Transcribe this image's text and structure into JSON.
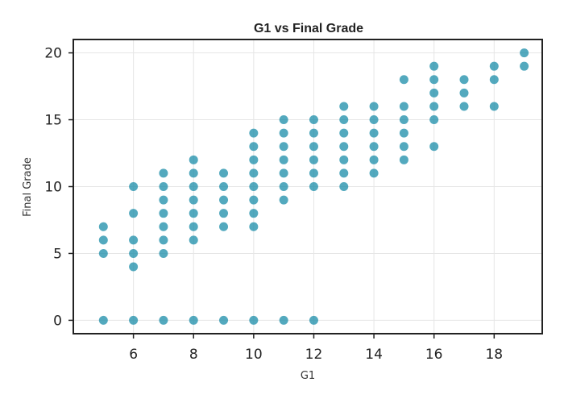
{
  "chart_data": {
    "type": "scatter",
    "title": "G1 vs Final Grade",
    "xlabel": "G1",
    "ylabel": "Final Grade",
    "xlim": [
      4.0,
      19.6
    ],
    "ylim": [
      -1,
      21
    ],
    "xticks": [
      6,
      8,
      10,
      12,
      14,
      16,
      18
    ],
    "yticks": [
      0,
      5,
      10,
      15,
      20
    ],
    "grid": true,
    "point_color": "#1a8ca8",
    "points": [
      {
        "x": 5,
        "y": 0
      },
      {
        "x": 5,
        "y": 5
      },
      {
        "x": 5,
        "y": 6
      },
      {
        "x": 5,
        "y": 7
      },
      {
        "x": 6,
        "y": 0
      },
      {
        "x": 6,
        "y": 4
      },
      {
        "x": 6,
        "y": 5
      },
      {
        "x": 6,
        "y": 6
      },
      {
        "x": 6,
        "y": 8
      },
      {
        "x": 6,
        "y": 10
      },
      {
        "x": 7,
        "y": 0
      },
      {
        "x": 7,
        "y": 5
      },
      {
        "x": 7,
        "y": 6
      },
      {
        "x": 7,
        "y": 7
      },
      {
        "x": 7,
        "y": 8
      },
      {
        "x": 7,
        "y": 9
      },
      {
        "x": 7,
        "y": 10
      },
      {
        "x": 7,
        "y": 11
      },
      {
        "x": 8,
        "y": 0
      },
      {
        "x": 8,
        "y": 6
      },
      {
        "x": 8,
        "y": 7
      },
      {
        "x": 8,
        "y": 8
      },
      {
        "x": 8,
        "y": 9
      },
      {
        "x": 8,
        "y": 10
      },
      {
        "x": 8,
        "y": 11
      },
      {
        "x": 8,
        "y": 12
      },
      {
        "x": 9,
        "y": 0
      },
      {
        "x": 9,
        "y": 7
      },
      {
        "x": 9,
        "y": 8
      },
      {
        "x": 9,
        "y": 9
      },
      {
        "x": 9,
        "y": 10
      },
      {
        "x": 9,
        "y": 11
      },
      {
        "x": 10,
        "y": 0
      },
      {
        "x": 10,
        "y": 7
      },
      {
        "x": 10,
        "y": 8
      },
      {
        "x": 10,
        "y": 9
      },
      {
        "x": 10,
        "y": 10
      },
      {
        "x": 10,
        "y": 11
      },
      {
        "x": 10,
        "y": 12
      },
      {
        "x": 10,
        "y": 13
      },
      {
        "x": 10,
        "y": 14
      },
      {
        "x": 11,
        "y": 0
      },
      {
        "x": 11,
        "y": 9
      },
      {
        "x": 11,
        "y": 10
      },
      {
        "x": 11,
        "y": 11
      },
      {
        "x": 11,
        "y": 12
      },
      {
        "x": 11,
        "y": 13
      },
      {
        "x": 11,
        "y": 14
      },
      {
        "x": 11,
        "y": 15
      },
      {
        "x": 12,
        "y": 0
      },
      {
        "x": 12,
        "y": 10
      },
      {
        "x": 12,
        "y": 11
      },
      {
        "x": 12,
        "y": 12
      },
      {
        "x": 12,
        "y": 13
      },
      {
        "x": 12,
        "y": 14
      },
      {
        "x": 12,
        "y": 15
      },
      {
        "x": 13,
        "y": 10
      },
      {
        "x": 13,
        "y": 11
      },
      {
        "x": 13,
        "y": 12
      },
      {
        "x": 13,
        "y": 13
      },
      {
        "x": 13,
        "y": 14
      },
      {
        "x": 13,
        "y": 15
      },
      {
        "x": 13,
        "y": 16
      },
      {
        "x": 14,
        "y": 11
      },
      {
        "x": 14,
        "y": 12
      },
      {
        "x": 14,
        "y": 13
      },
      {
        "x": 14,
        "y": 14
      },
      {
        "x": 14,
        "y": 15
      },
      {
        "x": 14,
        "y": 16
      },
      {
        "x": 15,
        "y": 12
      },
      {
        "x": 15,
        "y": 13
      },
      {
        "x": 15,
        "y": 14
      },
      {
        "x": 15,
        "y": 15
      },
      {
        "x": 15,
        "y": 16
      },
      {
        "x": 15,
        "y": 18
      },
      {
        "x": 16,
        "y": 13
      },
      {
        "x": 16,
        "y": 15
      },
      {
        "x": 16,
        "y": 16
      },
      {
        "x": 16,
        "y": 17
      },
      {
        "x": 16,
        "y": 18
      },
      {
        "x": 16,
        "y": 19
      },
      {
        "x": 17,
        "y": 16
      },
      {
        "x": 17,
        "y": 17
      },
      {
        "x": 17,
        "y": 18
      },
      {
        "x": 18,
        "y": 16
      },
      {
        "x": 18,
        "y": 18
      },
      {
        "x": 18,
        "y": 19
      },
      {
        "x": 19,
        "y": 19
      },
      {
        "x": 19,
        "y": 20
      }
    ]
  }
}
